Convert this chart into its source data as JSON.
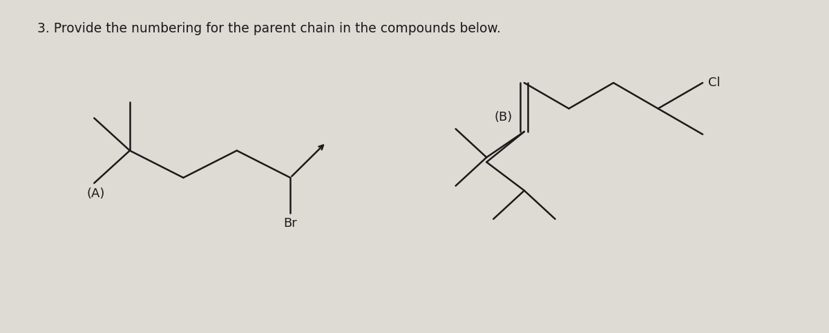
{
  "title": "3. Provide the numbering for the parent chain in the compounds below.",
  "title_fontsize": 13.5,
  "bg_color": "#dedad4",
  "line_color": "#1a1a1a",
  "line_width": 1.8,
  "label_A": "(A)",
  "label_B": "(B)",
  "label_Br": "Br",
  "label_Cl": "Cl",
  "label_fontsize": 13,
  "fig_width": 12.0,
  "fig_height": 4.83,
  "dpi": 100
}
